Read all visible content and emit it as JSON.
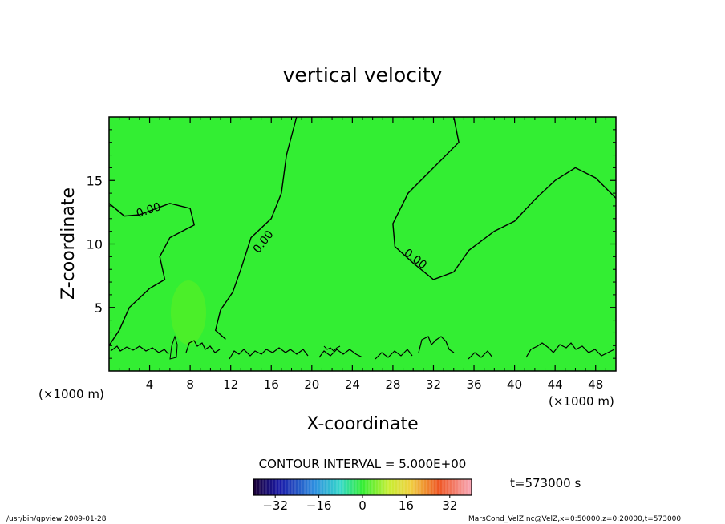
{
  "chart_data": {
    "type": "heatmap",
    "title": "vertical velocity",
    "xlabel": "X-coordinate",
    "ylabel": "Z-coordinate",
    "x_unit_left": "(×1000 m)",
    "x_unit_right": "(×1000 m)",
    "xlim": [
      0,
      50
    ],
    "ylim": [
      0,
      20
    ],
    "x_ticks": [
      "4",
      "8",
      "12",
      "16",
      "20",
      "24",
      "28",
      "32",
      "36",
      "40",
      "44",
      "48"
    ],
    "x_tick_values": [
      4,
      8,
      12,
      16,
      20,
      24,
      28,
      32,
      36,
      40,
      44,
      48
    ],
    "y_ticks": [
      "5",
      "10",
      "15"
    ],
    "y_tick_values": [
      5,
      10,
      15
    ],
    "contour_interval_label": "CONTOUR INTERVAL = 5.000E+00",
    "contour_labels": [
      "0.00",
      "0.00",
      "0.00"
    ],
    "contour_label_positions": [
      {
        "x": 4,
        "z": 12.4
      },
      {
        "x": 15.5,
        "z": 10
      },
      {
        "x": 30,
        "z": 8.6
      }
    ],
    "contour_lines": [
      [
        [
          0,
          13.2
        ],
        [
          1.5,
          12.2
        ],
        [
          3,
          12.3
        ],
        [
          6,
          13.2
        ],
        [
          8,
          12.8
        ],
        [
          8.4,
          11.5
        ],
        [
          6,
          10.5
        ],
        [
          5,
          9
        ],
        [
          5.5,
          7.2
        ],
        [
          4,
          6.5
        ],
        [
          2,
          5
        ],
        [
          1,
          3.2
        ],
        [
          0,
          2
        ]
      ],
      [
        [
          18.5,
          20
        ],
        [
          17.5,
          17
        ],
        [
          17,
          14
        ],
        [
          16,
          12
        ],
        [
          14,
          10.5
        ],
        [
          13,
          8
        ],
        [
          12.2,
          6.2
        ],
        [
          11,
          4.8
        ],
        [
          10.5,
          3.2
        ],
        [
          11.5,
          2.5
        ]
      ],
      [
        [
          34,
          20
        ],
        [
          34.5,
          18
        ],
        [
          32,
          16
        ],
        [
          29.5,
          14
        ],
        [
          28,
          11.6
        ],
        [
          28.2,
          9.8
        ],
        [
          30,
          8.5
        ],
        [
          32,
          7.2
        ],
        [
          34,
          7.8
        ],
        [
          35.5,
          9.5
        ],
        [
          38,
          11
        ],
        [
          40,
          11.8
        ],
        [
          42,
          13.5
        ],
        [
          44,
          15
        ],
        [
          46,
          16
        ],
        [
          48,
          15.2
        ],
        [
          50,
          13.6
        ]
      ]
    ],
    "colorbar": {
      "min": -40,
      "max": 40,
      "ticks": [
        "−32",
        "−16",
        "0",
        "16",
        "32"
      ],
      "tick_values": [
        -32,
        -16,
        0,
        16,
        32
      ]
    },
    "field_value": 0,
    "time_label": "t=573000 s"
  },
  "footer": {
    "left": "/usr/bin/gpview  2009-01-28",
    "right": "MarsCond_VelZ.nc@VelZ,x=0:50000,z=0:20000,t=573000"
  }
}
